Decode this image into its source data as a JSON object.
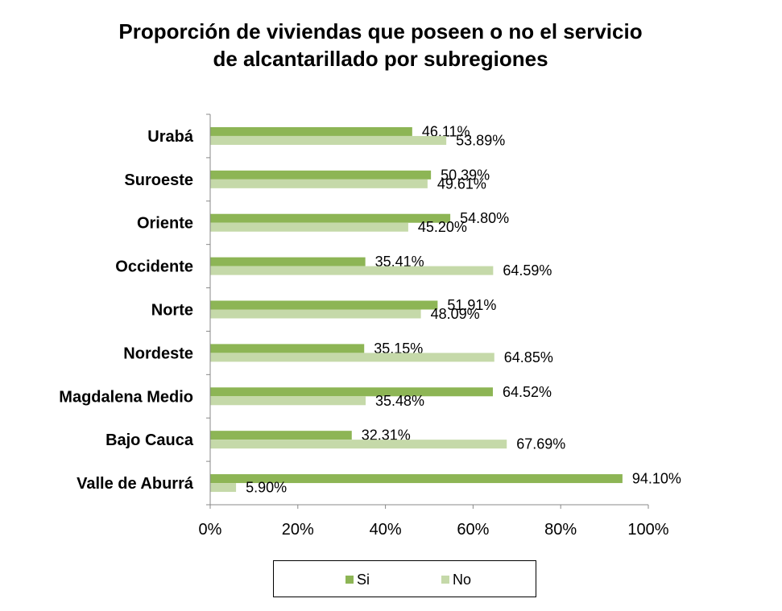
{
  "chart_data": {
    "type": "bar",
    "orientation": "horizontal",
    "title_lines": [
      "Proporción de viviendas que poseen o no el servicio",
      "de alcantarillado por subregiones"
    ],
    "categories": [
      "Urabá",
      "Suroeste",
      "Oriente",
      "Occidente",
      "Norte",
      "Nordeste",
      "Magdalena Medio",
      "Bajo Cauca",
      "Valle de Aburrá"
    ],
    "series": [
      {
        "name": "Si",
        "color": "#8db555",
        "values": [
          46.11,
          50.39,
          54.8,
          35.41,
          51.91,
          35.15,
          64.52,
          32.31,
          94.1
        ],
        "labels": [
          "46.11%",
          "50.39%",
          "54.80%",
          "35.41%",
          "51.91%",
          "35.15%",
          "64.52%",
          "32.31%",
          "94.10%"
        ]
      },
      {
        "name": "No",
        "color": "#c5d9a9",
        "values": [
          53.89,
          49.61,
          45.2,
          64.59,
          48.09,
          64.85,
          35.48,
          67.69,
          5.9
        ],
        "labels": [
          "53.89%",
          "49.61%",
          "45.20%",
          "64.59%",
          "48.09%",
          "64.85%",
          "35.48%",
          "67.69%",
          "5.90%"
        ]
      }
    ],
    "xlim": [
      0,
      100
    ],
    "xticks": [
      "0%",
      "20%",
      "40%",
      "60%",
      "80%",
      "100%"
    ],
    "grid": false,
    "legend_position": "bottom"
  }
}
